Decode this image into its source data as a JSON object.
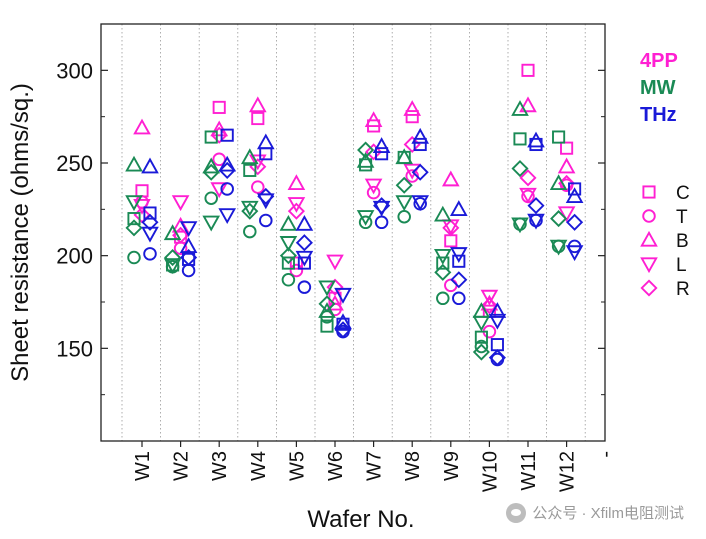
{
  "chart_data": {
    "type": "scatter",
    "xlabel": "Wafer No.",
    "ylabel": "Sheet resistance (ohms/sq.)",
    "ylim": [
      100,
      325
    ],
    "yticks": [
      150,
      200,
      250,
      300
    ],
    "categories": [
      "W1",
      "W2",
      "W3",
      "W4",
      "W5",
      "W6",
      "W7",
      "W8",
      "W9",
      "W10",
      "W11",
      "W12"
    ],
    "extra_tick_label": "-",
    "grid": "vertical dotted",
    "methods": [
      {
        "name": "4PP",
        "color": "#ff1fd2"
      },
      {
        "name": "MW",
        "color": "#1a8a55"
      },
      {
        "name": "THz",
        "color": "#1a1ad8"
      }
    ],
    "positions": [
      {
        "name": "C",
        "marker": "square"
      },
      {
        "name": "T",
        "marker": "circle"
      },
      {
        "name": "B",
        "marker": "triangle-up"
      },
      {
        "name": "L",
        "marker": "triangle-down"
      },
      {
        "name": "R",
        "marker": "diamond"
      }
    ],
    "series": [
      {
        "method": "4PP",
        "position": "C",
        "values": [
          235,
          210,
          280,
          274,
          196,
          177,
          270,
          275,
          208,
          170,
          300,
          258
        ]
      },
      {
        "method": "4PP",
        "position": "T",
        "values": [
          229,
          204,
          252,
          237,
          192,
          171,
          234,
          243,
          184,
          159,
          232,
          238
        ]
      },
      {
        "method": "4PP",
        "position": "B",
        "values": [
          269,
          216,
          268,
          281,
          239,
          174,
          273,
          279,
          241,
          174,
          281,
          248
        ]
      },
      {
        "method": "4PP",
        "position": "L",
        "values": [
          227,
          229,
          236,
          251,
          228,
          197,
          238,
          246,
          216,
          178,
          233,
          223
        ]
      },
      {
        "method": "4PP",
        "position": "R",
        "values": [
          222,
          211,
          265,
          248,
          224,
          183,
          256,
          260,
          215,
          173,
          242,
          239
        ]
      },
      {
        "method": "MW",
        "position": "C",
        "values": [
          220,
          195,
          264,
          246,
          196,
          162,
          249,
          253,
          196,
          156,
          263,
          264
        ]
      },
      {
        "method": "MW",
        "position": "T",
        "values": [
          199,
          194,
          231,
          213,
          187,
          167,
          218,
          221,
          177,
          151,
          217,
          205
        ]
      },
      {
        "method": "MW",
        "position": "B",
        "values": [
          249,
          212,
          248,
          253,
          217,
          170,
          251,
          253,
          222,
          170,
          279,
          239
        ]
      },
      {
        "method": "MW",
        "position": "L",
        "values": [
          229,
          195,
          218,
          226,
          207,
          183,
          221,
          229,
          200,
          164,
          217,
          205
        ]
      },
      {
        "method": "MW",
        "position": "R",
        "values": [
          215,
          199,
          245,
          224,
          200,
          174,
          257,
          238,
          191,
          148,
          247,
          220
        ]
      },
      {
        "method": "THz",
        "position": "C",
        "values": [
          223,
          198,
          265,
          255,
          196,
          163,
          255,
          260,
          197,
          152,
          260,
          236
        ]
      },
      {
        "method": "THz",
        "position": "T",
        "values": [
          201,
          192,
          236,
          219,
          183,
          159,
          218,
          228,
          177,
          144,
          219,
          205
        ]
      },
      {
        "method": "THz",
        "position": "B",
        "values": [
          248,
          205,
          249,
          261,
          217,
          164,
          259,
          264,
          225,
          170,
          262,
          232
        ]
      },
      {
        "method": "THz",
        "position": "L",
        "values": [
          212,
          215,
          222,
          230,
          199,
          179,
          226,
          229,
          201,
          165,
          219,
          202
        ]
      },
      {
        "method": "THz",
        "position": "R",
        "values": [
          218,
          199,
          246,
          232,
          207,
          160,
          227,
          245,
          187,
          145,
          227,
          218
        ]
      }
    ]
  },
  "watermark": {
    "text": "公众号 · Xfilm电阻测试"
  }
}
